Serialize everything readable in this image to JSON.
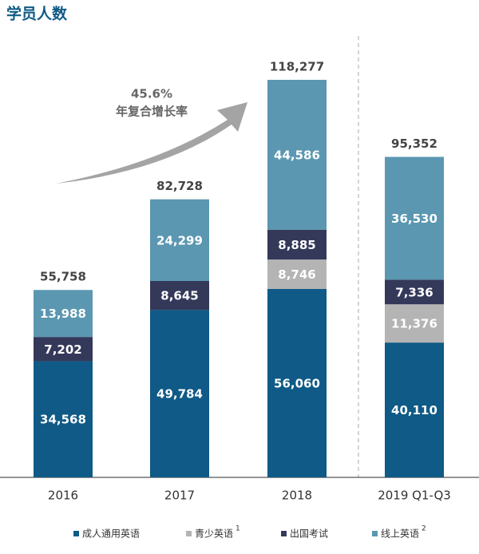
{
  "chart_data": {
    "type": "stacked-bar",
    "title": "学员人数",
    "categories": [
      "2016",
      "2017",
      "2018",
      "2019 Q1-Q3"
    ],
    "series": [
      {
        "name": "成人通用英语",
        "color": "#0f5a86",
        "label_color": "#ffffff",
        "values": [
          34568,
          49784,
          56060,
          40110
        ],
        "value_labels": [
          "34,568",
          "49,784",
          "56,060",
          "40,110"
        ]
      },
      {
        "name": "青少英语",
        "superscript": "1",
        "color": "#b4b4b4",
        "label_color": "#ffffff",
        "values": [
          null,
          null,
          8746,
          11376
        ],
        "value_labels": [
          null,
          null,
          "8,746",
          "11,376"
        ]
      },
      {
        "name": "出国考试",
        "color": "#34395a",
        "label_color": "#ffffff",
        "values": [
          7202,
          8645,
          8885,
          7336
        ],
        "value_labels": [
          "7,202",
          "8,645",
          "8,885",
          "7,336"
        ]
      },
      {
        "name": "线上英语",
        "superscript": "2",
        "color": "#5b97b1",
        "label_color": "#ffffff",
        "values": [
          13988,
          24299,
          44586,
          36530
        ],
        "value_labels": [
          "13,988",
          "24,299",
          "44,586",
          "36,530"
        ]
      }
    ],
    "totals": [
      55758,
      82728,
      118277,
      95352
    ],
    "total_labels": [
      "55,758",
      "82,728",
      "118,277",
      "95,352"
    ],
    "annotation": {
      "value": "45.6%",
      "text": "年复合增长率"
    }
  }
}
